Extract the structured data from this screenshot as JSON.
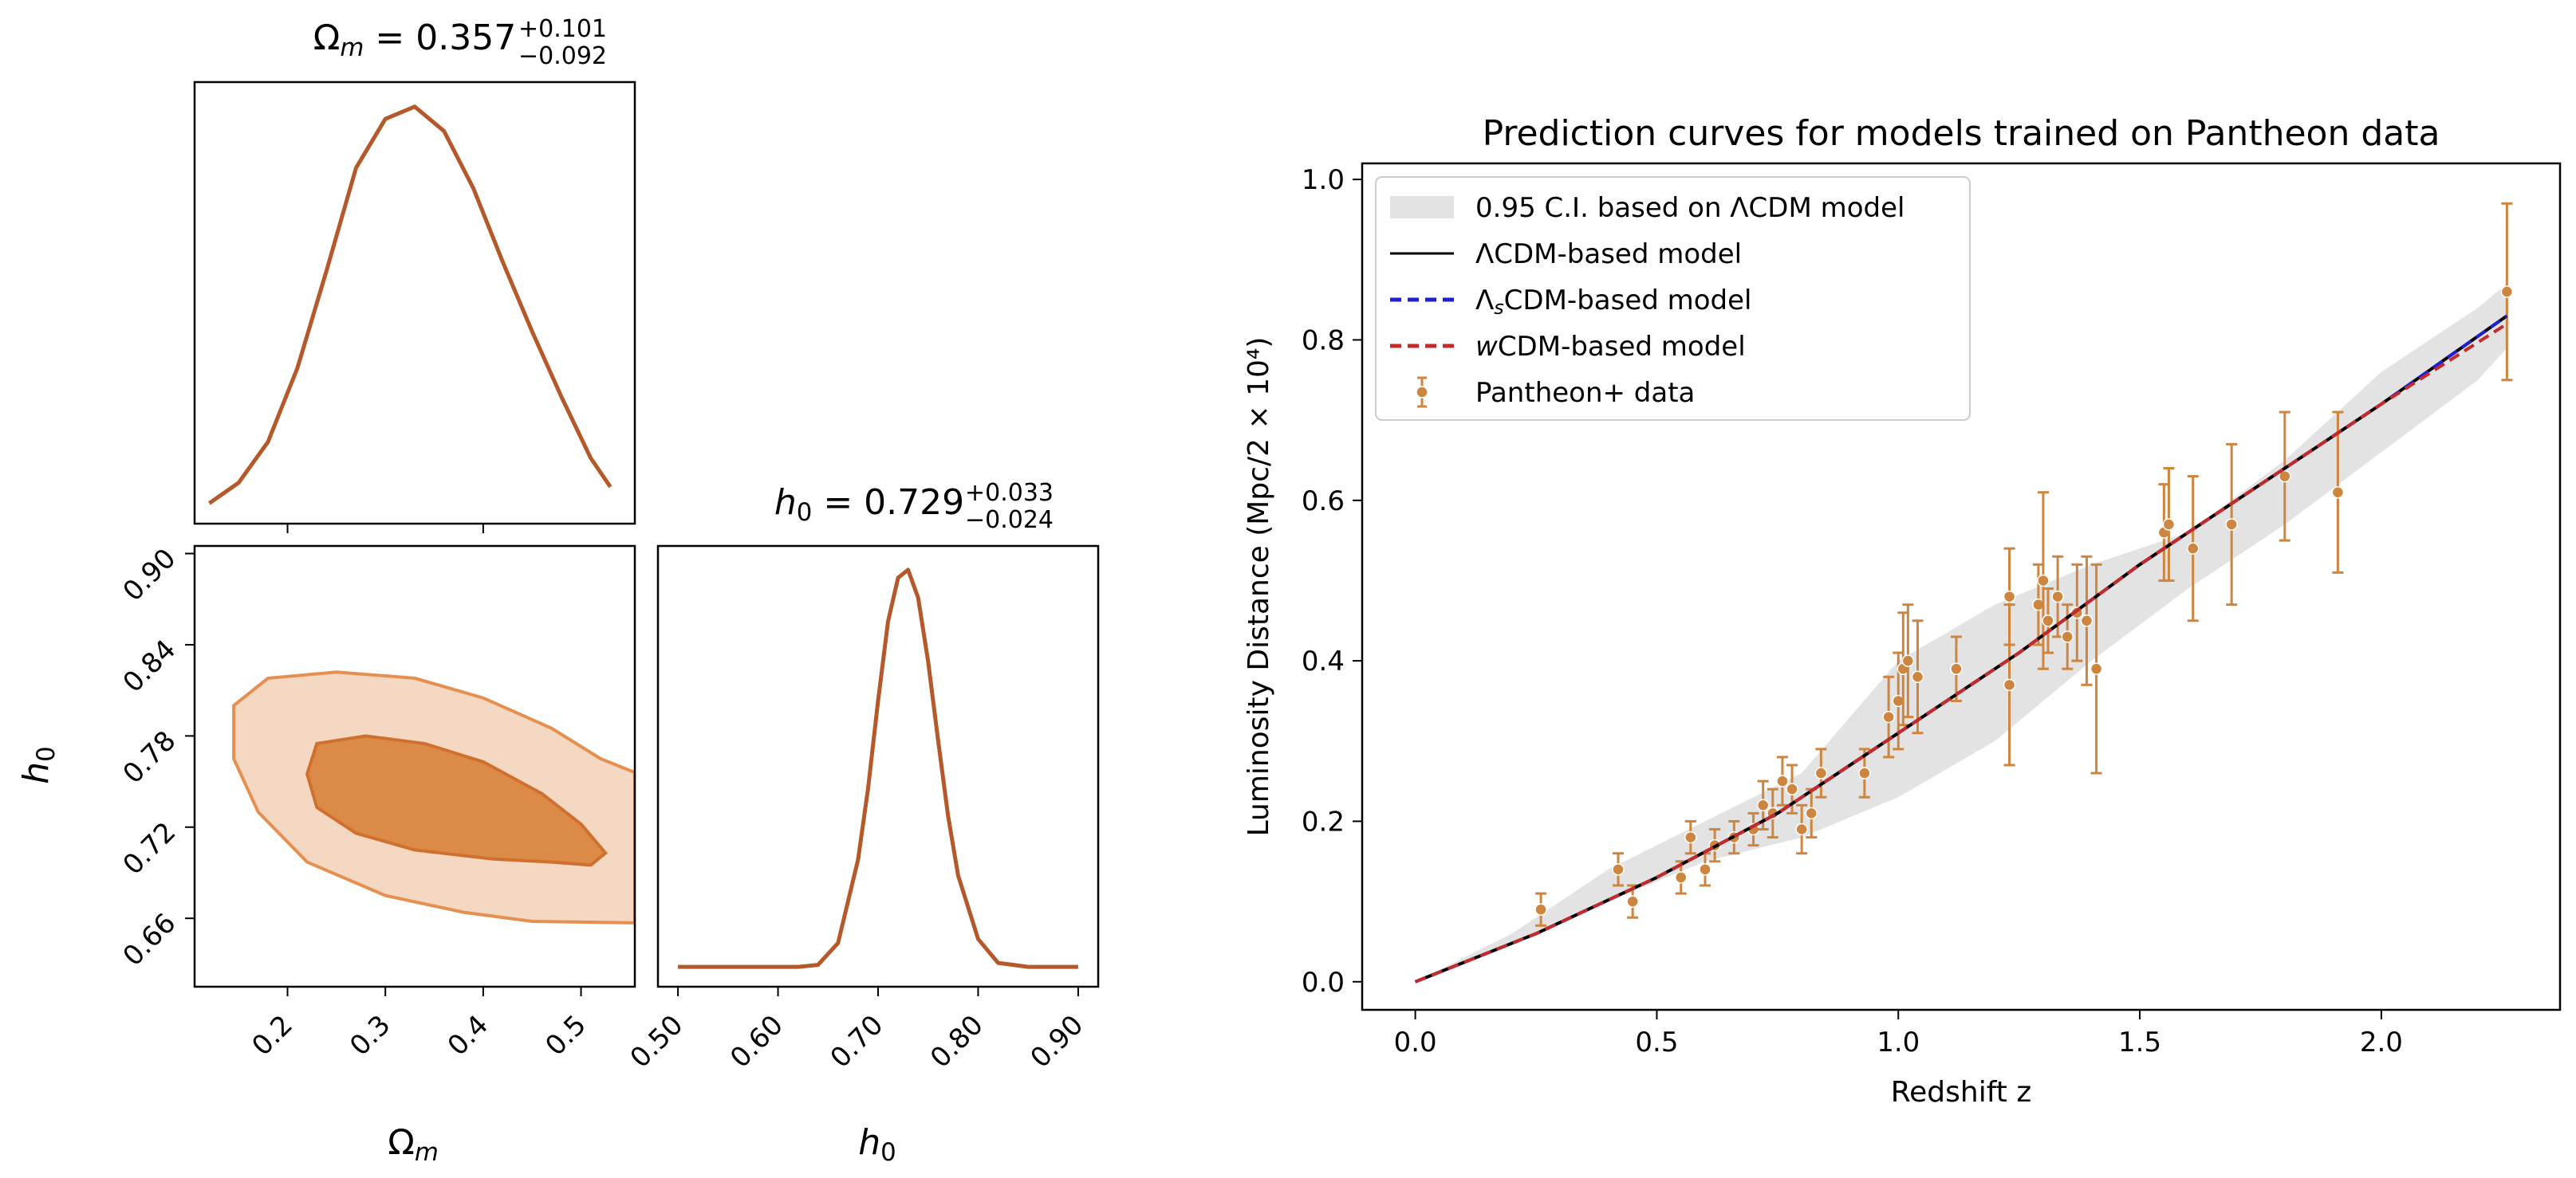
{
  "chart_data": [
    {
      "type": "line",
      "panel": "corner-marginal-omega",
      "title_html": [
        "Ω",
        "m",
        " = 0.357",
        "+0.101",
        "−0.092"
      ],
      "x": [
        0.12,
        0.15,
        0.18,
        0.21,
        0.24,
        0.27,
        0.3,
        0.33,
        0.36,
        0.39,
        0.42,
        0.45,
        0.48,
        0.51,
        0.53
      ],
      "y": [
        0.03,
        0.08,
        0.18,
        0.36,
        0.6,
        0.85,
        0.97,
        1.0,
        0.94,
        0.8,
        0.62,
        0.45,
        0.29,
        0.14,
        0.07
      ],
      "xlim": [
        0.105,
        0.555
      ],
      "ylim": [
        -0.02,
        1.06
      ],
      "color": "#b5582a"
    },
    {
      "type": "contour",
      "panel": "corner-2d-omega-h0",
      "xlabel": [
        "Ω",
        "m"
      ],
      "ylabel": [
        "h",
        "0"
      ],
      "xlim": [
        0.105,
        0.555
      ],
      "ylim": [
        0.615,
        0.905
      ],
      "xticks": [
        "0.2",
        "0.3",
        "0.4",
        "0.5"
      ],
      "xtick_values": [
        0.2,
        0.3,
        0.4,
        0.5
      ],
      "yticks": [
        "0.66",
        "0.72",
        "0.78",
        "0.84",
        "0.90"
      ],
      "ytick_values": [
        0.66,
        0.72,
        0.78,
        0.84,
        0.9
      ],
      "contour_95": [
        [
          0.555,
          0.756
        ],
        [
          0.52,
          0.765
        ],
        [
          0.47,
          0.785
        ],
        [
          0.4,
          0.805
        ],
        [
          0.33,
          0.818
        ],
        [
          0.25,
          0.822
        ],
        [
          0.18,
          0.818
        ],
        [
          0.145,
          0.8
        ],
        [
          0.145,
          0.765
        ],
        [
          0.17,
          0.73
        ],
        [
          0.22,
          0.697
        ],
        [
          0.3,
          0.675
        ],
        [
          0.38,
          0.664
        ],
        [
          0.45,
          0.658
        ],
        [
          0.555,
          0.657
        ]
      ],
      "contour_68": [
        [
          0.525,
          0.703
        ],
        [
          0.5,
          0.722
        ],
        [
          0.46,
          0.742
        ],
        [
          0.4,
          0.763
        ],
        [
          0.34,
          0.775
        ],
        [
          0.28,
          0.78
        ],
        [
          0.23,
          0.775
        ],
        [
          0.22,
          0.755
        ],
        [
          0.23,
          0.733
        ],
        [
          0.27,
          0.716
        ],
        [
          0.33,
          0.705
        ],
        [
          0.41,
          0.699
        ],
        [
          0.47,
          0.697
        ],
        [
          0.51,
          0.695
        ]
      ],
      "color_outer": "#f5d8c2",
      "color_inner": "#dc8a48",
      "edge_color": "#e58f50"
    },
    {
      "type": "line",
      "panel": "corner-marginal-h0",
      "title_html": [
        "h",
        "0",
        " = 0.729",
        "+0.033",
        "−0.024"
      ],
      "x": [
        0.5,
        0.55,
        0.6,
        0.62,
        0.64,
        0.66,
        0.68,
        0.69,
        0.7,
        0.71,
        0.72,
        0.73,
        0.74,
        0.75,
        0.76,
        0.77,
        0.78,
        0.8,
        0.82,
        0.85,
        0.9
      ],
      "y": [
        0.0,
        0.0,
        0.0,
        0.0,
        0.005,
        0.06,
        0.27,
        0.45,
        0.67,
        0.87,
        0.98,
        1.0,
        0.93,
        0.77,
        0.57,
        0.38,
        0.23,
        0.07,
        0.01,
        0.0,
        0.0
      ],
      "xlabel": [
        "h",
        "0"
      ],
      "xlim": [
        0.48,
        0.92
      ],
      "ylim": [
        -0.05,
        1.06
      ],
      "xticks": [
        "0.50",
        "0.60",
        "0.70",
        "0.80",
        "0.90"
      ],
      "xtick_values": [
        0.5,
        0.6,
        0.7,
        0.8,
        0.9
      ],
      "color": "#b5582a"
    },
    {
      "type": "line",
      "panel": "luminosity-distance",
      "title": "Prediction curves for models trained on Pantheon data",
      "xlabel": "Redshift z",
      "ylabel": "Luminosity Distance (Mpc/2 × 10⁴)",
      "xlim": [
        -0.11,
        2.37
      ],
      "ylim": [
        -0.035,
        1.02
      ],
      "xticks": [
        "0.0",
        "0.5",
        "1.0",
        "1.5",
        "2.0"
      ],
      "xtick_values": [
        0.0,
        0.5,
        1.0,
        1.5,
        2.0
      ],
      "yticks": [
        "0.0",
        "0.2",
        "0.4",
        "0.6",
        "0.8",
        "1.0"
      ],
      "ytick_values": [
        0.0,
        0.2,
        0.4,
        0.6,
        0.8,
        1.0
      ],
      "legend_position": "upper left",
      "legend": [
        {
          "label_parts": [
            "0.95 C.I. based on ΛCDM model"
          ],
          "style": "band"
        },
        {
          "label_parts": [
            "ΛCDM-based model"
          ],
          "style": "solid-black"
        },
        {
          "label_parts": [
            "Λ",
            "s",
            "CDM-based model"
          ],
          "style": "dashed-blue"
        },
        {
          "label_parts": [
            "w",
            "CDM-based model"
          ],
          "style": "dashed-red"
        },
        {
          "label_parts": [
            "Pantheon+ data"
          ],
          "style": "errorbar"
        }
      ],
      "ci_band": {
        "z": [
          0.0,
          0.2,
          0.4,
          0.6,
          0.8,
          1.0,
          1.2,
          1.4,
          1.6,
          1.8,
          2.0,
          2.2,
          2.26
        ],
        "lower": [
          0.0,
          0.05,
          0.1,
          0.15,
          0.18,
          0.23,
          0.3,
          0.4,
          0.49,
          0.57,
          0.66,
          0.75,
          0.79
        ],
        "upper": [
          0.0,
          0.06,
          0.14,
          0.2,
          0.26,
          0.4,
          0.47,
          0.52,
          0.56,
          0.65,
          0.76,
          0.84,
          0.87
        ],
        "color": "#e3e3e3"
      },
      "series": [
        {
          "style": "solid-black",
          "color": "#000000",
          "x": [
            0.0,
            0.25,
            0.5,
            0.75,
            1.0,
            1.25,
            1.5,
            1.75,
            2.0,
            2.26
          ],
          "y": [
            0.0,
            0.06,
            0.13,
            0.21,
            0.31,
            0.41,
            0.52,
            0.62,
            0.72,
            0.83
          ]
        },
        {
          "style": "dashed-blue",
          "color": "#1f1fd6",
          "x": [
            0.0,
            0.25,
            0.5,
            0.75,
            1.0,
            1.25,
            1.5,
            1.75,
            2.0,
            2.26
          ],
          "y": [
            0.0,
            0.06,
            0.13,
            0.21,
            0.31,
            0.41,
            0.52,
            0.62,
            0.72,
            0.83
          ]
        },
        {
          "style": "dashed-red",
          "color": "#c42a2a",
          "x": [
            0.0,
            0.25,
            0.5,
            0.75,
            1.0,
            1.25,
            1.5,
            1.75,
            2.0,
            2.26
          ],
          "y": [
            0.0,
            0.06,
            0.13,
            0.21,
            0.31,
            0.41,
            0.52,
            0.62,
            0.72,
            0.82
          ]
        }
      ],
      "data_points": {
        "color": "#cd853f",
        "z": [
          0.26,
          0.42,
          0.45,
          0.55,
          0.57,
          0.6,
          0.62,
          0.66,
          0.7,
          0.72,
          0.74,
          0.76,
          0.78,
          0.8,
          0.82,
          0.84,
          0.93,
          0.98,
          1.0,
          1.01,
          1.02,
          1.04,
          1.12,
          1.23,
          1.23,
          1.29,
          1.3,
          1.31,
          1.33,
          1.35,
          1.37,
          1.39,
          1.41,
          1.55,
          1.56,
          1.61,
          1.69,
          1.8,
          1.91,
          2.26
        ],
        "d": [
          0.09,
          0.14,
          0.1,
          0.13,
          0.18,
          0.14,
          0.17,
          0.18,
          0.19,
          0.22,
          0.21,
          0.25,
          0.24,
          0.19,
          0.21,
          0.26,
          0.26,
          0.33,
          0.35,
          0.39,
          0.4,
          0.38,
          0.39,
          0.37,
          0.48,
          0.47,
          0.5,
          0.45,
          0.48,
          0.43,
          0.46,
          0.45,
          0.39,
          0.56,
          0.57,
          0.54,
          0.57,
          0.63,
          0.61,
          0.86
        ],
        "err": [
          0.02,
          0.02,
          0.02,
          0.02,
          0.02,
          0.02,
          0.02,
          0.02,
          0.02,
          0.03,
          0.03,
          0.03,
          0.03,
          0.03,
          0.03,
          0.03,
          0.03,
          0.05,
          0.06,
          0.07,
          0.07,
          0.07,
          0.04,
          0.1,
          0.06,
          0.05,
          0.11,
          0.04,
          0.05,
          0.04,
          0.06,
          0.08,
          0.13,
          0.06,
          0.07,
          0.09,
          0.1,
          0.08,
          0.1,
          0.11
        ]
      }
    }
  ]
}
